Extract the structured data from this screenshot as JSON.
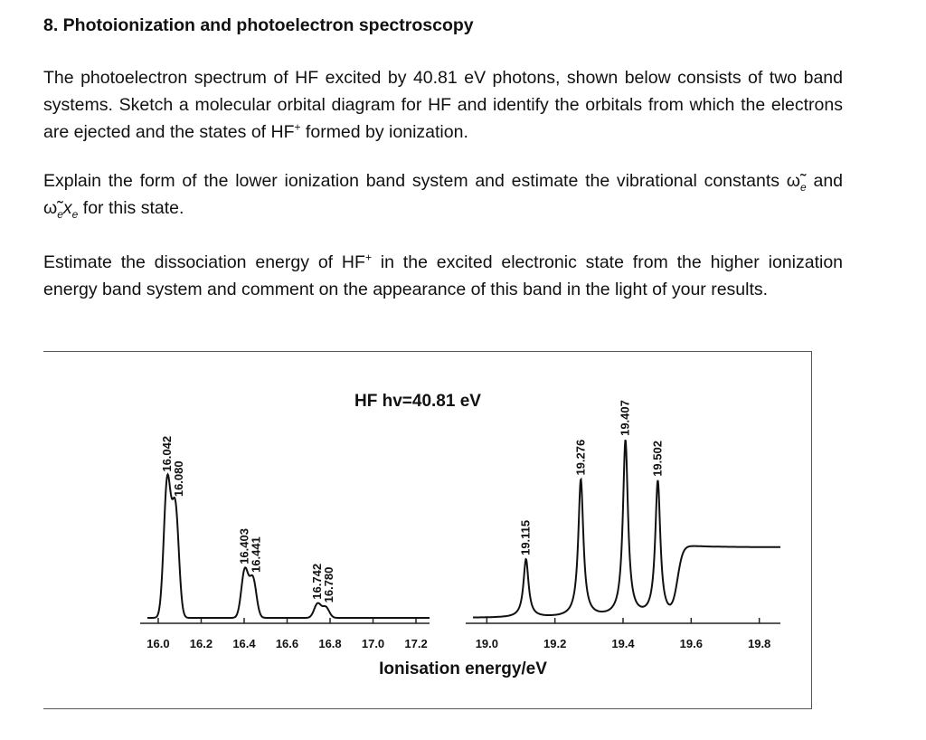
{
  "heading": "8. Photoionization and photoelectron spectroscopy",
  "paragraphs": [
    [
      "The photoelectron spectrum of HF excited by 40.81 eV photons, shown below consists of two band systems.  Sketch a molecular orbital diagram for HF and identify the orbitals from which the electrons are ejected and the states of HF",
      "+",
      " formed by ionization."
    ],
    [
      "Explain the form of the lower ionization band system and estimate the vibrational constants ",
      "ω̃",
      "e",
      " and ",
      "ω̃",
      "e",
      "x",
      "e",
      " for this state."
    ],
    [
      "Estimate the dissociation energy of HF",
      "+",
      " in the excited electronic state from the higher ionization energy band system and comment on the appearance of this band in the light of your results."
    ]
  ],
  "figure": {
    "title": "HF hv=40.81 eV",
    "xlabel": "Ionisation energy/eV",
    "segments": [
      {
        "xlim": [
          15.916,
          17.263
        ],
        "xticks": [
          {
            "value": 16,
            "label": "16.0"
          },
          16.2,
          16.4,
          16.6,
          16.8,
          {
            "value": 17,
            "label": "17.0"
          },
          17.2
        ],
        "peaks": [
          {
            "value": 16.042,
            "intensity": 77
          },
          {
            "value": 16.08,
            "label": "16.080",
            "intensity": 62
          },
          {
            "value": 16.403,
            "intensity": 27
          },
          {
            "value": 16.441,
            "intensity": 22
          },
          {
            "value": 16.742,
            "intensity": 8
          },
          {
            "value": 16.78,
            "label": "16.780",
            "intensity": 6
          }
        ]
      },
      {
        "xlim": [
          18.938,
          19.862
        ],
        "xticks": [
          {
            "value": 19,
            "label": "19.0"
          },
          19.2,
          19.4,
          19.6,
          19.8
        ],
        "peaks": [
          {
            "value": 19.115,
            "intensity": 33
          },
          {
            "value": 19.276,
            "intensity": 78
          },
          {
            "value": 19.407,
            "intensity": 100
          },
          {
            "value": 19.502,
            "intensity": 77
          }
        ],
        "continuum": {
          "onset": 19.56,
          "level": 40
        }
      }
    ]
  }
}
